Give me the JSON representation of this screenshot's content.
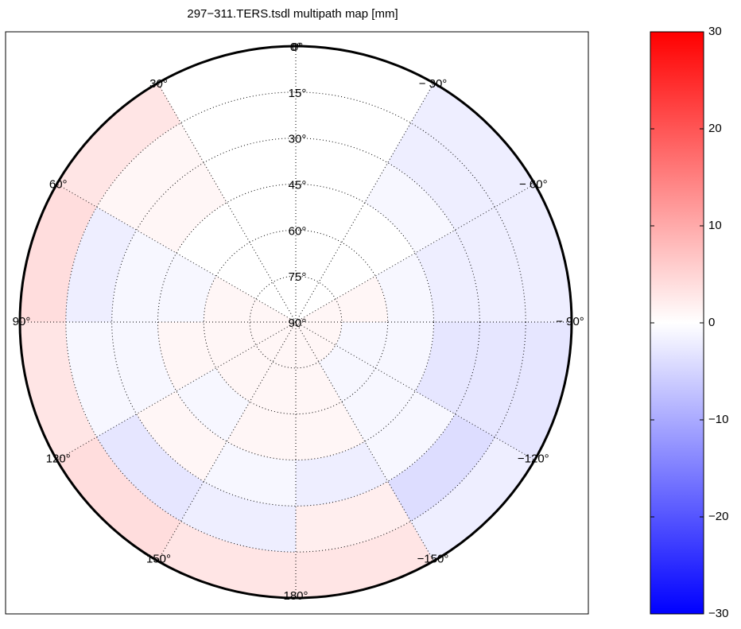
{
  "chart_data": {
    "type": "polar-heatmap",
    "title": "297−311.TERS.tsdl multipath map [mm]",
    "az_bins": [
      -180,
      -150,
      -120,
      -90,
      -60,
      -30,
      0,
      30,
      60,
      90,
      120,
      150,
      180
    ],
    "el_bins": [
      0,
      15,
      30,
      45,
      60,
      75,
      90
    ],
    "values": [
      [
        3,
        -2,
        -3,
        -2,
        -2,
        null,
        null,
        3,
        4,
        3,
        4,
        3
      ],
      [
        2,
        -4,
        -3,
        -2,
        -2,
        null,
        null,
        1,
        -2,
        -1,
        -3,
        -2
      ],
      [
        -2,
        -1,
        -3,
        -2,
        -1,
        null,
        null,
        1,
        -1,
        -1,
        1,
        -1
      ],
      [
        1,
        -1,
        -1,
        -1,
        null,
        null,
        null,
        null,
        -1,
        1,
        -1,
        1
      ],
      [
        1,
        -1,
        -1,
        1,
        null,
        null,
        null,
        null,
        1,
        1,
        1,
        1
      ],
      [
        1,
        1,
        1,
        1,
        null,
        null,
        null,
        null,
        1,
        1,
        1,
        1
      ]
    ],
    "az_ticks": [
      {
        "value": 0,
        "label": "0°"
      },
      {
        "value": 30,
        "label": "30°"
      },
      {
        "value": 60,
        "label": "60°"
      },
      {
        "value": 90,
        "label": "90°"
      },
      {
        "value": 120,
        "label": "120°"
      },
      {
        "value": 150,
        "label": "150°"
      },
      {
        "value": 180,
        "label": "180°"
      },
      {
        "value": -150,
        "label": "−150°"
      },
      {
        "value": -120,
        "label": "−120°"
      },
      {
        "value": -90,
        "label": "− 90°"
      },
      {
        "value": -60,
        "label": "− 60°"
      },
      {
        "value": -30,
        "label": "− 30°"
      }
    ],
    "el_lim": [
      90,
      0
    ],
    "el_ticks": [
      {
        "value": 0,
        "label": "0°"
      },
      {
        "value": 15,
        "label": "15°"
      },
      {
        "value": 30,
        "label": "30°"
      },
      {
        "value": 45,
        "label": "45°"
      },
      {
        "value": 60,
        "label": "60°"
      },
      {
        "value": 75,
        "label": "75°"
      },
      {
        "value": 90,
        "label": "90°"
      }
    ],
    "clim": [
      -30,
      30
    ],
    "cticks": [
      {
        "value": -30,
        "label": "−30"
      },
      {
        "value": -20,
        "label": "−20"
      },
      {
        "value": -10,
        "label": "−10"
      },
      0,
      10,
      20,
      30
    ],
    "colormap": [
      "#0000ff",
      "#ffffff",
      "#ff0000"
    ]
  }
}
